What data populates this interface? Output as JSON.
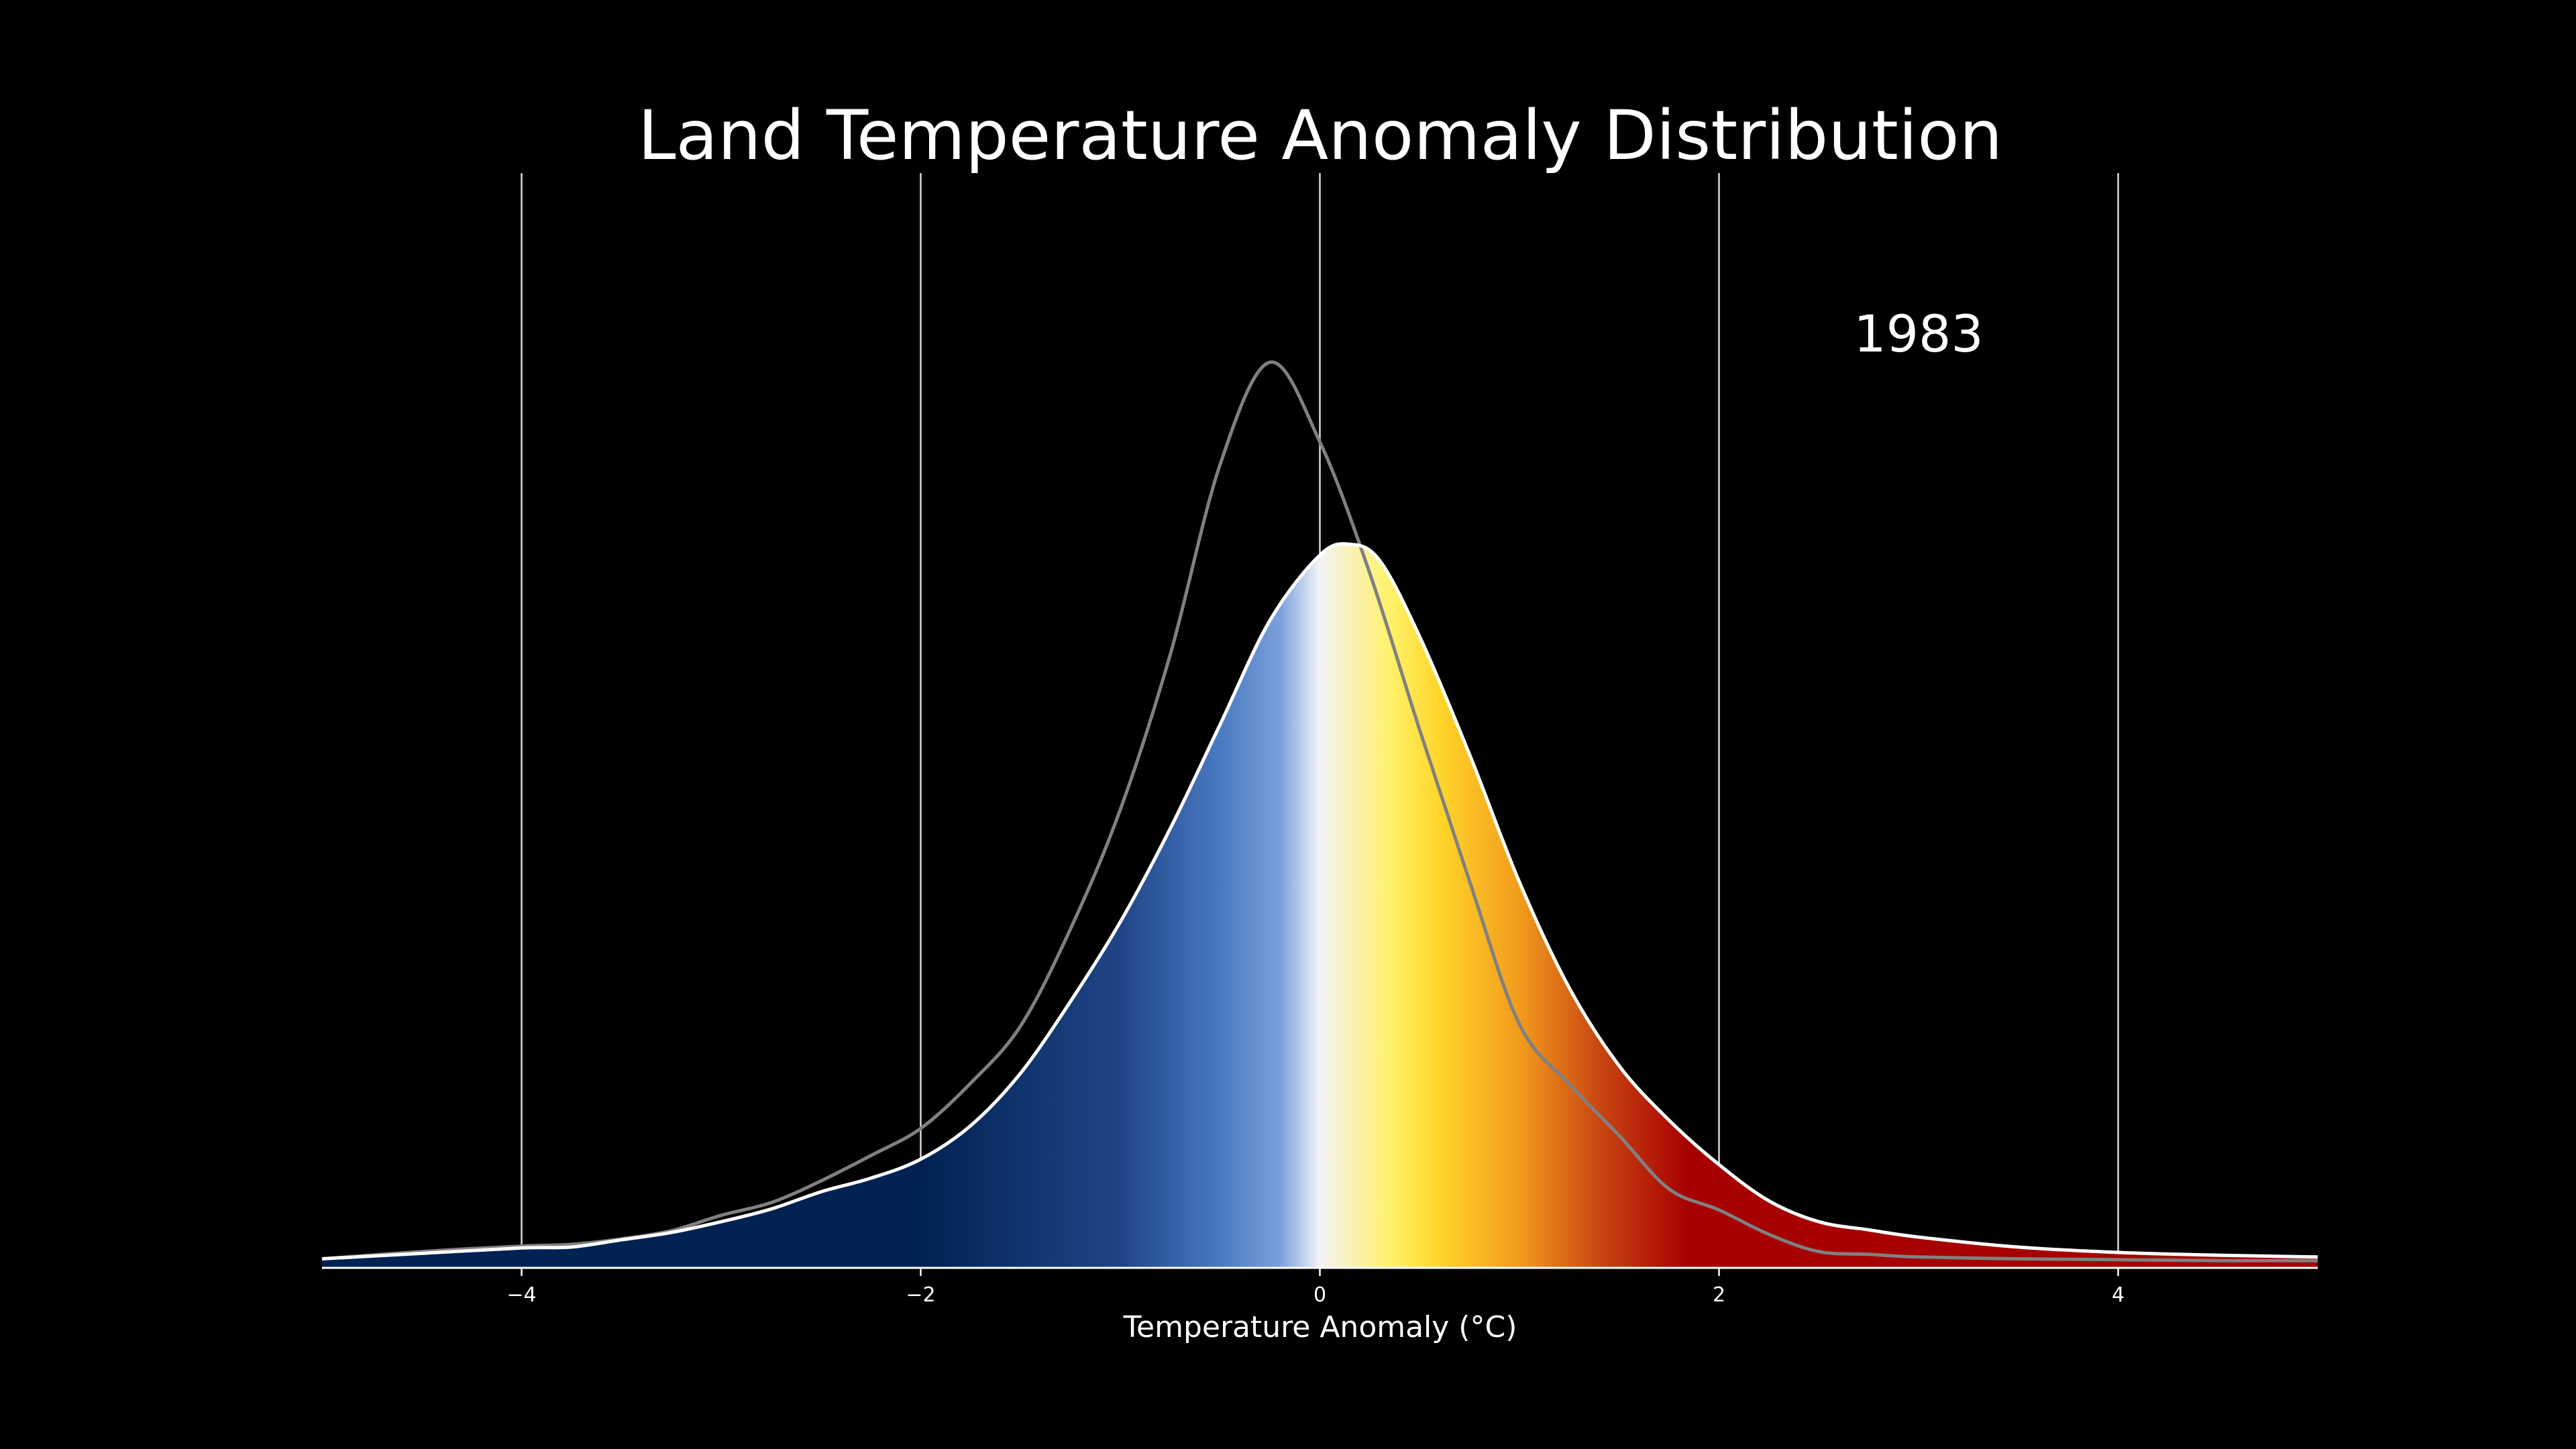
{
  "chart_data": {
    "type": "area",
    "title": "Land Temperature Anomaly Distribution",
    "annotation": "1983",
    "xlabel": "Temperature Anomaly (°C)",
    "ylabel": "",
    "xlim": [
      -5,
      5
    ],
    "ylim": [
      0,
      1.0
    ],
    "xticks": [
      -4,
      -2,
      0,
      2,
      4
    ],
    "xtick_labels": [
      "−4",
      "−2",
      "0",
      "2",
      "4"
    ],
    "grid": "vertical",
    "series": [
      {
        "role": "current",
        "style": "filled",
        "fill_gradient": "blue-white-yellow-red",
        "x": [
          -5.0,
          -4.5,
          -4.0,
          -3.75,
          -3.5,
          -3.25,
          -3.0,
          -2.75,
          -2.5,
          -2.25,
          -2.0,
          -1.75,
          -1.5,
          -1.25,
          -1.0,
          -0.75,
          -0.5,
          -0.25,
          0.0,
          0.15,
          0.3,
          0.5,
          0.75,
          1.0,
          1.25,
          1.5,
          1.75,
          2.0,
          2.25,
          2.5,
          2.75,
          3.0,
          3.5,
          4.0,
          4.5,
          5.0
        ],
        "y": [
          0.01,
          0.016,
          0.022,
          0.023,
          0.031,
          0.039,
          0.051,
          0.065,
          0.084,
          0.099,
          0.12,
          0.157,
          0.215,
          0.294,
          0.382,
          0.485,
          0.6,
          0.715,
          0.787,
          0.799,
          0.781,
          0.697,
          0.567,
          0.426,
          0.309,
          0.223,
          0.163,
          0.114,
          0.074,
          0.051,
          0.042,
          0.034,
          0.023,
          0.017,
          0.014,
          0.012
        ]
      },
      {
        "role": "baseline",
        "style": "line",
        "color": "#808080",
        "x": [
          -5.0,
          -4.5,
          -4.0,
          -3.75,
          -3.5,
          -3.25,
          -3.0,
          -2.75,
          -2.5,
          -2.25,
          -2.0,
          -1.75,
          -1.5,
          -1.25,
          -1.0,
          -0.75,
          -0.5,
          -0.25,
          0.0,
          0.25,
          0.5,
          0.75,
          1.0,
          1.25,
          1.5,
          1.75,
          2.0,
          2.25,
          2.5,
          2.75,
          3.0,
          3.5,
          4.0,
          4.5,
          5.0
        ],
        "y": [
          0.01,
          0.018,
          0.024,
          0.026,
          0.032,
          0.041,
          0.058,
          0.072,
          0.096,
          0.124,
          0.154,
          0.204,
          0.267,
          0.374,
          0.506,
          0.677,
          0.887,
          1.0,
          0.912,
          0.767,
          0.594,
          0.427,
          0.269,
          0.203,
          0.146,
          0.087,
          0.064,
          0.037,
          0.018,
          0.015,
          0.012,
          0.01,
          0.009,
          0.008,
          0.008
        ]
      }
    ],
    "colors": {
      "background": "#000000",
      "text": "#ffffff",
      "grid": "#d9d9d9",
      "current_line": "#ffffff",
      "baseline_line": "#808080",
      "gradient_stops": [
        "#002252",
        "#002252",
        "#1f4587",
        "#4a79c0",
        "#7aa0dc",
        "#f3f3f7",
        "#fff26a",
        "#ffd62a",
        "#f29b1d",
        "#c94612",
        "#a60000",
        "#a60000"
      ]
    }
  }
}
